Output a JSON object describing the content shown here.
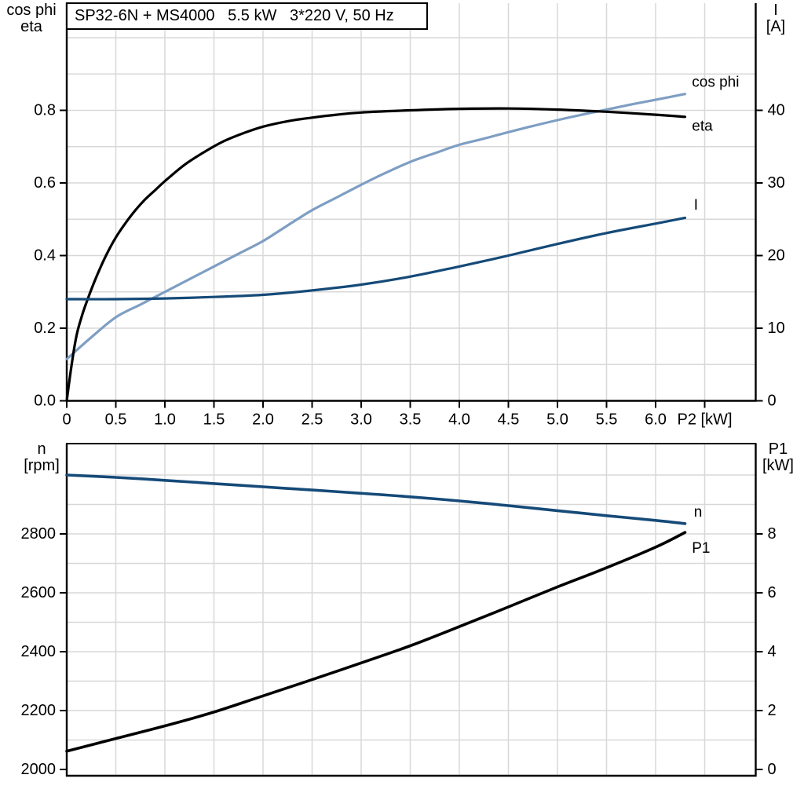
{
  "chart_data": [
    {
      "type": "line",
      "name": "motor-performance-top",
      "title": "SP32-6N + MS4000   5.5 kW   3*220 V, 50 Hz",
      "x_axis": {
        "label": "P2 [kW]",
        "min": 0,
        "max": 7.0,
        "grid_step": 0.5,
        "grid_values": [
          0.5,
          1,
          1.5,
          2,
          2.5,
          3,
          3.5,
          4,
          4.5,
          5,
          5.5,
          6,
          6.5
        ],
        "tick_values": [
          0,
          0.5,
          1,
          1.5,
          2,
          2.5,
          3,
          3.5,
          4,
          4.5,
          5,
          5.5,
          6,
          6.5
        ],
        "tick_labels": [
          "0",
          "0.5",
          "1.0",
          "1.5",
          "2.0",
          "2.5",
          "3.0",
          "3.5",
          "4.0",
          "4.5",
          "5.0",
          "5.5",
          "6.0",
          "P2 [kW]"
        ]
      },
      "y_left": {
        "title_lines": [
          "cos phi",
          "eta"
        ],
        "min": 0,
        "max": 1.0,
        "grid_step": 0.1,
        "grid_values": [
          0.1,
          0.2,
          0.3,
          0.4,
          0.5,
          0.6,
          0.7,
          0.8,
          0.9,
          1.0
        ],
        "tick_values": [
          0,
          0.2,
          0.4,
          0.6,
          0.8
        ],
        "tick_labels": [
          "0.0",
          "0.2",
          "0.4",
          "0.6",
          "0.8"
        ]
      },
      "y_right": {
        "title_lines": [
          "I",
          "[A]"
        ],
        "min": 0,
        "max": 50,
        "grid_step": 5,
        "grid_values": [],
        "tick_values": [
          0,
          10,
          20,
          30,
          40
        ],
        "tick_labels": [
          "0",
          "10",
          "20",
          "30",
          "40"
        ]
      },
      "series": [
        {
          "id": "cos-phi",
          "name": "cos phi",
          "axis": "left",
          "color": "#7E9EC3",
          "label_color": "#7E9EC3",
          "label_pos": [
            6.37,
            0.865
          ],
          "points": [
            [
              0,
              0.115
            ],
            [
              0.25,
              0.175
            ],
            [
              0.5,
              0.23
            ],
            [
              0.75,
              0.265
            ],
            [
              1,
              0.3
            ],
            [
              1.25,
              0.335
            ],
            [
              1.5,
              0.37
            ],
            [
              1.75,
              0.405
            ],
            [
              2,
              0.44
            ],
            [
              2.25,
              0.483
            ],
            [
              2.5,
              0.525
            ],
            [
              2.75,
              0.56
            ],
            [
              3,
              0.595
            ],
            [
              3.25,
              0.628
            ],
            [
              3.5,
              0.658
            ],
            [
              3.75,
              0.682
            ],
            [
              4,
              0.705
            ],
            [
              4.25,
              0.722
            ],
            [
              4.5,
              0.74
            ],
            [
              4.75,
              0.757
            ],
            [
              5,
              0.773
            ],
            [
              5.25,
              0.788
            ],
            [
              5.5,
              0.802
            ],
            [
              5.75,
              0.816
            ],
            [
              6,
              0.829
            ],
            [
              6.3,
              0.845
            ]
          ]
        },
        {
          "id": "eta",
          "name": "eta",
          "axis": "left",
          "color": "#000000",
          "label_color": "#000000",
          "label_pos": [
            6.37,
            0.744
          ],
          "points": [
            [
              0,
              0
            ],
            [
              0.05,
              0.1
            ],
            [
              0.1,
              0.18
            ],
            [
              0.15,
              0.23
            ],
            [
              0.2,
              0.27
            ],
            [
              0.3,
              0.34
            ],
            [
              0.4,
              0.4
            ],
            [
              0.5,
              0.45
            ],
            [
              0.6,
              0.49
            ],
            [
              0.7,
              0.525
            ],
            [
              0.8,
              0.555
            ],
            [
              0.9,
              0.58
            ],
            [
              1,
              0.605
            ],
            [
              1.2,
              0.65
            ],
            [
              1.4,
              0.685
            ],
            [
              1.6,
              0.715
            ],
            [
              1.8,
              0.737
            ],
            [
              2,
              0.755
            ],
            [
              2.25,
              0.77
            ],
            [
              2.5,
              0.78
            ],
            [
              2.75,
              0.788
            ],
            [
              3,
              0.794
            ],
            [
              3.5,
              0.8
            ],
            [
              4,
              0.804
            ],
            [
              4.5,
              0.805
            ],
            [
              5,
              0.802
            ],
            [
              5.5,
              0.796
            ],
            [
              6,
              0.788
            ],
            [
              6.3,
              0.782
            ]
          ]
        },
        {
          "id": "current",
          "name": "I",
          "axis": "right",
          "color": "#154A78",
          "label_color": "#1F5C99",
          "label_pos": [
            6.39,
            26.3
          ],
          "points": [
            [
              0,
              14
            ],
            [
              0.5,
              14
            ],
            [
              1,
              14.1
            ],
            [
              1.5,
              14.3
            ],
            [
              2,
              14.6
            ],
            [
              2.5,
              15.2
            ],
            [
              3,
              16
            ],
            [
              3.5,
              17.1
            ],
            [
              4,
              18.5
            ],
            [
              4.5,
              20
            ],
            [
              5,
              21.6
            ],
            [
              5.5,
              23.1
            ],
            [
              6,
              24.4
            ],
            [
              6.3,
              25.2
            ]
          ]
        }
      ]
    },
    {
      "type": "line",
      "name": "motor-performance-bottom",
      "title": "",
      "x_axis": {
        "label": "",
        "min": 0,
        "max": 7.0,
        "grid_step": 0.5,
        "grid_values": [
          0.5,
          1,
          1.5,
          2,
          2.5,
          3,
          3.5,
          4,
          4.5,
          5,
          5.5,
          6,
          6.5
        ],
        "tick_values": [],
        "tick_labels": []
      },
      "y_left": {
        "title_lines": [
          "n",
          "[rpm]"
        ],
        "min": 2000,
        "max": 3100,
        "grid_step": 100,
        "grid_values": [
          2100,
          2200,
          2300,
          2400,
          2500,
          2600,
          2700,
          2800,
          2900,
          3000
        ],
        "tick_values": [
          2000,
          2200,
          2400,
          2600,
          2800
        ],
        "tick_labels": [
          "2000",
          "2200",
          "2400",
          "2600",
          "2800"
        ]
      },
      "y_right": {
        "title_lines": [
          "P1",
          "[kW]"
        ],
        "min": 0,
        "max": 11,
        "grid_step": 1,
        "grid_values": [],
        "tick_values": [
          0,
          2,
          4,
          6,
          8
        ],
        "tick_labels": [
          "0",
          "2",
          "4",
          "6",
          "8"
        ]
      },
      "series": [
        {
          "id": "speed",
          "name": "n",
          "axis": "left",
          "color": "#154A78",
          "label_color": "#1F5C99",
          "label_pos": [
            6.39,
            2859
          ],
          "points": [
            [
              0,
              3000
            ],
            [
              0.5,
              2992
            ],
            [
              1,
              2982
            ],
            [
              1.5,
              2971
            ],
            [
              2,
              2960
            ],
            [
              2.5,
              2949
            ],
            [
              3,
              2938
            ],
            [
              3.5,
              2926
            ],
            [
              4,
              2912
            ],
            [
              4.5,
              2896
            ],
            [
              5,
              2879
            ],
            [
              5.5,
              2862
            ],
            [
              6,
              2846
            ],
            [
              6.3,
              2835
            ]
          ]
        },
        {
          "id": "p1",
          "name": "P1",
          "axis": "right",
          "color": "#000000",
          "label_color": "#000000",
          "label_pos": [
            6.37,
            7.36
          ],
          "points": [
            [
              0,
              0.62
            ],
            [
              0.5,
              1.05
            ],
            [
              1,
              1.48
            ],
            [
              1.5,
              1.95
            ],
            [
              2,
              2.5
            ],
            [
              2.5,
              3.05
            ],
            [
              3,
              3.62
            ],
            [
              3.5,
              4.2
            ],
            [
              4,
              4.85
            ],
            [
              4.5,
              5.52
            ],
            [
              5,
              6.2
            ],
            [
              5.5,
              6.85
            ],
            [
              6,
              7.55
            ],
            [
              6.3,
              8.05
            ]
          ]
        }
      ]
    }
  ],
  "colors": {
    "grid": "#D8D8D8",
    "axis": "#000000",
    "cos_phi": "#7E9EC3",
    "dark_blue": "#154A78",
    "black": "#000000"
  }
}
